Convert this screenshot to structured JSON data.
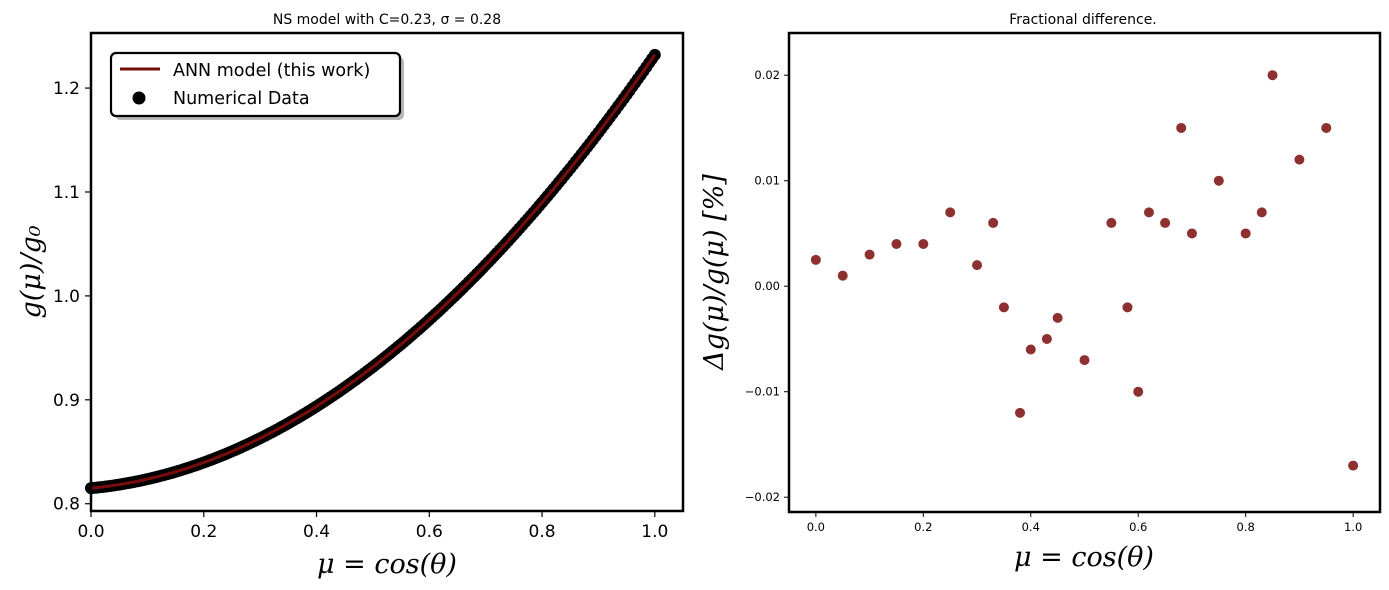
{
  "colors": {
    "line": "#7a0c0c",
    "dots": "#000000",
    "scatter": "#7a0c0c"
  },
  "chart_data": [
    {
      "type": "line",
      "title": "NS model with C=0.23, σ = 0.28",
      "xlabel": "μ = cos(θ)",
      "ylabel": "g(μ)/g₀",
      "xlim": [
        0.0,
        1.05
      ],
      "ylim": [
        0.793,
        1.253
      ],
      "xticks": [
        "0.0",
        "0.2",
        "0.4",
        "0.6",
        "0.8",
        "1.0"
      ],
      "yticks": [
        "0.8",
        "0.9",
        "1.0",
        "1.1",
        "1.2"
      ],
      "legend": {
        "position": "upper-left",
        "entries": [
          "ANN model (this work)",
          "Numerical Data"
        ]
      },
      "series": [
        {
          "name": "ANN model (this work)",
          "kind": "line",
          "formula": "0.815 + 0.05*x + 0.367*x^2",
          "x_range": [
            0,
            1
          ],
          "points": 101
        },
        {
          "name": "Numerical Data",
          "kind": "scatter",
          "formula": "0.815 + 0.05*x + 0.367*x^2",
          "x_range": [
            0,
            1
          ],
          "points": 201
        }
      ]
    },
    {
      "type": "scatter",
      "title": "Fractional difference.",
      "xlabel": "μ = cos(θ)",
      "ylabel": "Δg(μ)/g(μ) [%]",
      "xlim": [
        -0.05,
        1.05
      ],
      "ylim": [
        -0.0214,
        0.024
      ],
      "xticks": [
        "0.0",
        "0.2",
        "0.4",
        "0.6",
        "0.8",
        "1.0"
      ],
      "yticks": [
        "−0.02",
        "−0.01",
        "0.00",
        "0.01",
        "0.02"
      ],
      "x": [
        0.0,
        0.05,
        0.1,
        0.15,
        0.2,
        0.25,
        0.3,
        0.33,
        0.35,
        0.38,
        0.4,
        0.43,
        0.45,
        0.5,
        0.55,
        0.58,
        0.6,
        0.62,
        0.65,
        0.68,
        0.7,
        0.75,
        0.8,
        0.83,
        0.85,
        0.9,
        0.95,
        1.0
      ],
      "y": [
        0.0025,
        0.001,
        0.003,
        0.004,
        0.004,
        0.007,
        0.002,
        0.006,
        -0.002,
        -0.012,
        -0.006,
        -0.005,
        -0.003,
        -0.007,
        0.006,
        -0.002,
        -0.01,
        0.007,
        0.006,
        0.015,
        0.005,
        0.01,
        0.005,
        0.007,
        0.02,
        0.012,
        0.015,
        -0.017
      ]
    }
  ]
}
